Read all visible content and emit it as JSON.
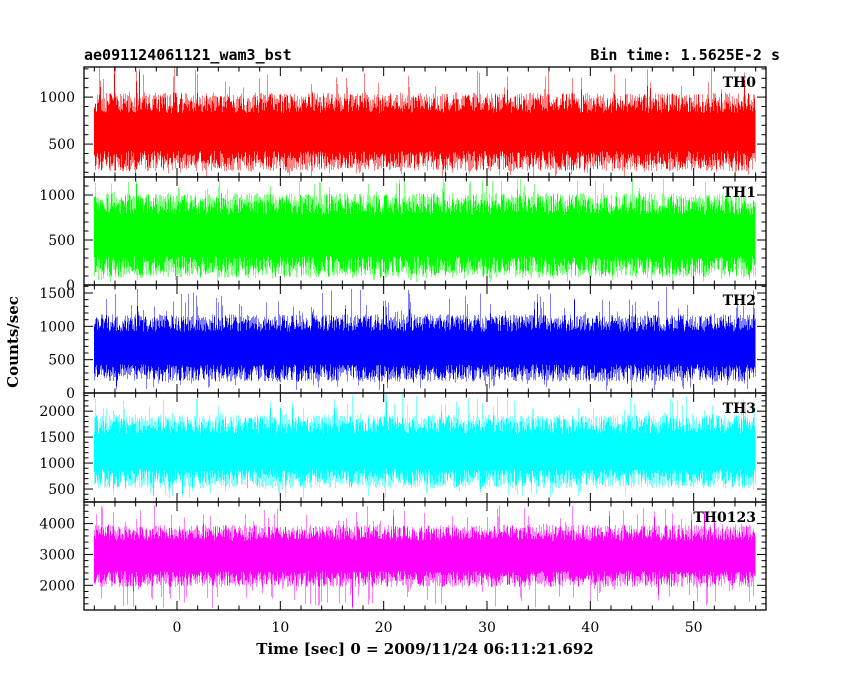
{
  "header": {
    "left_title": "ae091124061121_wam3_bst",
    "right_title": "Bin time: 1.5625E-2 s"
  },
  "axes": {
    "ylabel": "Counts/sec",
    "xlabel": "Time [sec] 0 = 2009/11/24 06:11:21.692"
  },
  "chart_data": {
    "type": "line",
    "title": "ae091124061121_wam3_bst",
    "subtitle": "Bin time: 1.5625E-2 s",
    "xlabel": "Time [sec] 0 = 2009/11/24 06:11:21.692",
    "ylabel": "Counts/sec",
    "xlim": [
      -9,
      57
    ],
    "data_x_range": [
      -8,
      56
    ],
    "bin_time": 0.015625,
    "x_ticks": [
      0,
      10,
      20,
      30,
      40,
      50
    ],
    "x_tick_labels": [
      "0",
      "10",
      "20",
      "30",
      "40",
      "50"
    ],
    "grid": false,
    "legend": "none",
    "panels": [
      {
        "name": "TH0",
        "color": "#ff0000",
        "ylim": [
          150,
          1320
        ],
        "y_ticks": [
          500,
          1000
        ],
        "y_tick_labels": [
          "500",
          "1000"
        ],
        "typical_low": 320,
        "typical_high": 940,
        "min": 150,
        "max": 1320
      },
      {
        "name": "TH1",
        "color": "#00ff00",
        "ylim": [
          0,
          1200
        ],
        "y_ticks": [
          0,
          500,
          1000
        ],
        "y_tick_labels": [
          "0",
          "500",
          "1000"
        ],
        "typical_low": 200,
        "typical_high": 900,
        "min": 30,
        "max": 1180
      },
      {
        "name": "TH2",
        "color": "#0000ff",
        "ylim": [
          0,
          1620
        ],
        "y_ticks": [
          0,
          500,
          1000,
          1500
        ],
        "y_tick_labels": [
          "0",
          "500",
          "1000",
          "1500"
        ],
        "typical_low": 300,
        "typical_high": 1050,
        "min": 40,
        "max": 1600
      },
      {
        "name": "TH3",
        "color": "#00ffff",
        "ylim": [
          250,
          2350
        ],
        "y_ticks": [
          500,
          1000,
          1500,
          2000
        ],
        "y_tick_labels": [
          "500",
          "1000",
          "1500",
          "2000"
        ],
        "typical_low": 700,
        "typical_high": 1750,
        "min": 320,
        "max": 2350
      },
      {
        "name": "TH0123",
        "color": "#ff00ff",
        "ylim": [
          1200,
          4700
        ],
        "y_ticks": [
          2000,
          3000,
          4000
        ],
        "y_tick_labels": [
          "2000",
          "3000",
          "4000"
        ],
        "typical_low": 2200,
        "typical_high": 3700,
        "min": 1250,
        "max": 4600
      }
    ]
  }
}
